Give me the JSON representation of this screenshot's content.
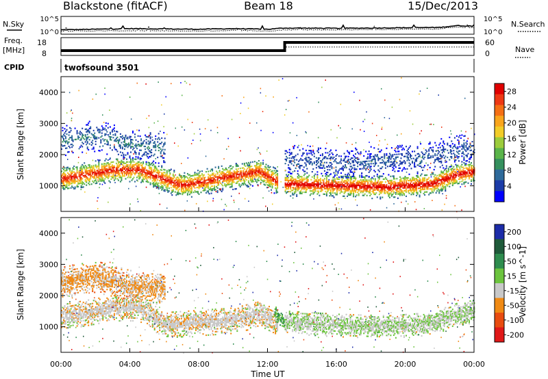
{
  "header": {
    "station": "Blackstone (fitACF)",
    "beam": "Beam 18",
    "date": "15/Dec/2013"
  },
  "labels": {
    "nsky": "N.Sky",
    "nsearch": "N.Search",
    "freq": "Freq.",
    "freq_unit": "[MHz]",
    "nave": "Nave",
    "cpid": "CPID",
    "cpid_value": "twofsound 3501",
    "xlabel": "Time UT",
    "nsky_ticks": [
      "10^5",
      "10^0"
    ],
    "freq_ticks": [
      "18",
      "8"
    ],
    "nave_ticks": [
      "60",
      "0"
    ]
  },
  "chart_data": [
    {
      "type": "line",
      "name": "noise-panel",
      "xlim": [
        0,
        24
      ],
      "ylim_log10": [
        0,
        5
      ],
      "series": [
        {
          "name": "N.Sky",
          "style": "solid",
          "x": [
            0,
            4,
            8,
            10,
            12,
            13,
            16,
            20,
            22,
            23,
            24
          ],
          "y_log10": [
            1.0,
            1.4,
            1.2,
            1.4,
            1.2,
            1.6,
            1.5,
            1.7,
            1.8,
            2.4,
            2.2
          ]
        },
        {
          "name": "N.Search",
          "style": "dotted",
          "x": [
            0,
            4,
            8,
            10,
            12,
            13,
            16,
            20,
            22,
            23,
            24
          ],
          "y_log10": [
            0.6,
            0.7,
            0.6,
            0.8,
            0.6,
            1.0,
            1.0,
            1.2,
            1.3,
            1.9,
            1.7
          ]
        }
      ]
    },
    {
      "type": "line",
      "name": "freq-nave-panel",
      "xlim": [
        0,
        24
      ],
      "series": [
        {
          "name": "Freq.",
          "style": "solid",
          "ylim": [
            8,
            18
          ],
          "x": [
            0,
            13,
            13,
            24
          ],
          "y": [
            10.5,
            10.5,
            15.5,
            15.5
          ]
        },
        {
          "name": "Nave",
          "style": "dotted",
          "ylim": [
            0,
            60
          ],
          "x": [
            0,
            13,
            13,
            24
          ],
          "y": [
            18,
            18,
            28,
            28
          ]
        }
      ]
    },
    {
      "type": "heatmap",
      "name": "power-panel",
      "ylabel": "Slant Range [km]",
      "colorbar_label": "Power [dB]",
      "xlim": [
        0,
        24
      ],
      "ylim": [
        180,
        4500
      ],
      "yticks": [
        1000,
        2000,
        3000,
        4000
      ],
      "xticks": [
        "00:00",
        "04:00",
        "08:00",
        "12:00",
        "16:00",
        "20:00",
        "00:00"
      ],
      "colorbar_ticks": [
        4,
        8,
        12,
        16,
        20,
        24,
        28
      ],
      "colorbar_colors": [
        "#0000ff",
        "#1c3ca8",
        "#2e6a9a",
        "#35905e",
        "#5ab44a",
        "#9ccc3c",
        "#f2cc28",
        "#f9a51c",
        "#f56f14",
        "#ee3814",
        "#e00000"
      ],
      "colorbar_range": [
        0,
        30
      ],
      "bands": [
        {
          "x": [
            0,
            3,
            4.5,
            7,
            10,
            11.5,
            12.6
          ],
          "center": [
            1200,
            1500,
            1500,
            1000,
            1300,
            1450,
            1100
          ],
          "width": 420,
          "peak_db": 28
        },
        {
          "x": [
            13,
            16,
            19,
            21.5,
            23,
            24
          ],
          "center": [
            1050,
            1000,
            950,
            1050,
            1350,
            1450
          ],
          "width": 380,
          "peak_db": 30
        },
        {
          "x": [
            0,
            2,
            4,
            6
          ],
          "center": [
            2400,
            2600,
            2300,
            2200
          ],
          "width": 500,
          "peak_db": 8
        },
        {
          "x": [
            13,
            17,
            21,
            24
          ],
          "center": [
            1800,
            1700,
            1900,
            2200
          ],
          "width": 500,
          "peak_db": 6
        }
      ]
    },
    {
      "type": "heatmap",
      "name": "velocity-panel",
      "ylabel": "Slant Range [km]",
      "colorbar_label": "Velocity [m s^-1]",
      "xlim": [
        0,
        24
      ],
      "ylim": [
        180,
        4500
      ],
      "yticks": [
        1000,
        2000,
        3000,
        4000
      ],
      "xticks": [
        "00:00",
        "04:00",
        "08:00",
        "12:00",
        "16:00",
        "20:00",
        "00:00"
      ],
      "colorbar_ticks": [
        200,
        100,
        50,
        15,
        -15,
        -50,
        -100,
        -200
      ],
      "colorbar_colors": [
        "#1c2ca8",
        "#1f5a3a",
        "#2e8c4e",
        "#6cc43e",
        "#c8c8c8",
        "#f08a14",
        "#e84c10",
        "#e01818"
      ],
      "colorbar_range": [
        -250,
        250
      ],
      "bands": [
        {
          "x": [
            0,
            3,
            4.5,
            6,
            10,
            11.5,
            12.6
          ],
          "center": [
            1300,
            1600,
            1600,
            1050,
            1200,
            1400,
            1100
          ],
          "width": 420,
          "velocity": -40
        },
        {
          "x": [
            12.4,
            12.8,
            13
          ],
          "center": [
            1400,
            1200,
            1000
          ],
          "width": 250,
          "velocity": 60
        },
        {
          "x": [
            13,
            16,
            19,
            21.5,
            23,
            24
          ],
          "center": [
            1150,
            1050,
            1000,
            1100,
            1400,
            1500
          ],
          "width": 380,
          "velocity": -5
        },
        {
          "x": [
            0,
            2,
            4,
            6
          ],
          "center": [
            2400,
            2600,
            2300,
            2200
          ],
          "width": 500,
          "velocity": -70
        }
      ]
    }
  ]
}
